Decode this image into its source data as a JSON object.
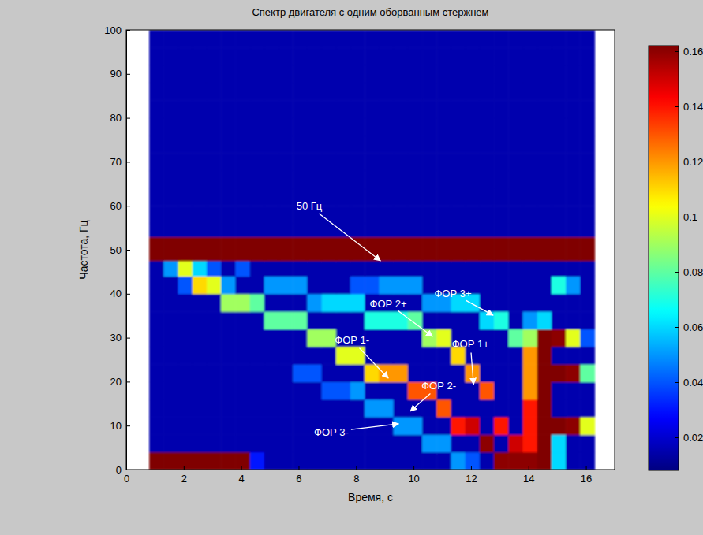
{
  "chart_data": {
    "type": "heatmap",
    "title": "Спектр двигателя с одним оборванным стержнем",
    "x_label": "Время, с",
    "y_label": "Частота, Гц",
    "xlim": [
      0,
      17
    ],
    "ylim": [
      0,
      100
    ],
    "xticks": [
      0,
      2,
      4,
      6,
      8,
      10,
      12,
      14,
      16
    ],
    "yticks": [
      0,
      10,
      20,
      30,
      40,
      50,
      60,
      70,
      80,
      90,
      100
    ],
    "grid": false,
    "x_bins": [
      0.8,
      1.3,
      1.8,
      2.3,
      2.8,
      3.3,
      3.8,
      4.3,
      4.8,
      5.3,
      5.8,
      6.3,
      6.8,
      7.3,
      7.8,
      8.3,
      8.8,
      9.3,
      9.8,
      10.3,
      10.8,
      11.3,
      11.8,
      12.3,
      12.8,
      13.3,
      13.8,
      14.3,
      14.8,
      15.3,
      15.8,
      16.3
    ],
    "y_bins": [
      0,
      4,
      8,
      12,
      16,
      20,
      24,
      28,
      32,
      36,
      40,
      44,
      47.5,
      53,
      56,
      60,
      64,
      68,
      72,
      76,
      80,
      84,
      88,
      92,
      96,
      100
    ],
    "z": [
      [
        0.2,
        0.2,
        0.2,
        0.2,
        0.2,
        0.2,
        0.2,
        0.03,
        0.015,
        0.015,
        0.015,
        0.015,
        0.015,
        0.015,
        0.015,
        0.015,
        0.015,
        0.015,
        0.015,
        0.015,
        0.015,
        0.05,
        0.04,
        0.015,
        0.16,
        0.16,
        0.16,
        0.18,
        0.06,
        0.015,
        0.015
      ],
      [
        0.015,
        0.015,
        0.015,
        0.015,
        0.015,
        0.015,
        0.015,
        0.015,
        0.015,
        0.015,
        0.015,
        0.015,
        0.015,
        0.015,
        0.015,
        0.015,
        0.015,
        0.015,
        0.015,
        0.05,
        0.05,
        0.015,
        0.015,
        0.16,
        0.015,
        0.15,
        0.14,
        0.18,
        0.06,
        0.015,
        0.015
      ],
      [
        0.015,
        0.015,
        0.015,
        0.015,
        0.015,
        0.015,
        0.015,
        0.015,
        0.015,
        0.015,
        0.015,
        0.015,
        0.015,
        0.015,
        0.015,
        0.015,
        0.015,
        0.05,
        0.05,
        0.015,
        0.015,
        0.14,
        0.15,
        0.015,
        0.14,
        0.015,
        0.14,
        0.18,
        0.18,
        0.16,
        0.1
      ],
      [
        0.015,
        0.015,
        0.015,
        0.015,
        0.015,
        0.015,
        0.015,
        0.015,
        0.015,
        0.015,
        0.015,
        0.015,
        0.015,
        0.015,
        0.015,
        0.05,
        0.05,
        0.015,
        0.015,
        0.015,
        0.13,
        0.015,
        0.015,
        0.015,
        0.015,
        0.015,
        0.14,
        0.18,
        0.015,
        0.015,
        0.015
      ],
      [
        0.015,
        0.015,
        0.015,
        0.015,
        0.015,
        0.015,
        0.015,
        0.015,
        0.015,
        0.015,
        0.015,
        0.015,
        0.04,
        0.04,
        0.05,
        0.015,
        0.015,
        0.015,
        0.13,
        0.13,
        0.015,
        0.015,
        0.015,
        0.13,
        0.015,
        0.015,
        0.12,
        0.18,
        0.015,
        0.015,
        0.015
      ],
      [
        0.015,
        0.015,
        0.015,
        0.015,
        0.015,
        0.015,
        0.015,
        0.015,
        0.015,
        0.015,
        0.04,
        0.04,
        0.015,
        0.015,
        0.015,
        0.11,
        0.12,
        0.12,
        0.015,
        0.015,
        0.015,
        0.015,
        0.12,
        0.015,
        0.015,
        0.015,
        0.12,
        0.18,
        0.18,
        0.16,
        0.08
      ],
      [
        0.015,
        0.015,
        0.015,
        0.015,
        0.015,
        0.015,
        0.015,
        0.015,
        0.015,
        0.015,
        0.015,
        0.015,
        0.015,
        0.1,
        0.1,
        0.015,
        0.015,
        0.015,
        0.015,
        0.015,
        0.015,
        0.11,
        0.015,
        0.015,
        0.015,
        0.015,
        0.12,
        0.18,
        0.015,
        0.015,
        0.015
      ],
      [
        0.015,
        0.015,
        0.015,
        0.015,
        0.015,
        0.015,
        0.015,
        0.015,
        0.015,
        0.015,
        0.015,
        0.09,
        0.09,
        0.015,
        0.015,
        0.015,
        0.015,
        0.015,
        0.015,
        0.09,
        0.1,
        0.015,
        0.015,
        0.015,
        0.015,
        0.08,
        0.09,
        0.18,
        0.16,
        0.1,
        0.04
      ],
      [
        0.015,
        0.015,
        0.015,
        0.015,
        0.015,
        0.015,
        0.015,
        0.015,
        0.08,
        0.08,
        0.08,
        0.015,
        0.015,
        0.015,
        0.015,
        0.07,
        0.07,
        0.07,
        0.08,
        0.015,
        0.015,
        0.015,
        0.015,
        0.06,
        0.07,
        0.015,
        0.05,
        0.06,
        0.015,
        0.015,
        0.015
      ],
      [
        0.015,
        0.015,
        0.015,
        0.015,
        0.015,
        0.09,
        0.09,
        0.08,
        0.015,
        0.015,
        0.015,
        0.05,
        0.06,
        0.06,
        0.06,
        0.015,
        0.015,
        0.015,
        0.015,
        0.05,
        0.05,
        0.06,
        0.06,
        0.015,
        0.015,
        0.015,
        0.015,
        0.015,
        0.015,
        0.015,
        0.015
      ],
      [
        0.015,
        0.015,
        0.04,
        0.11,
        0.1,
        0.05,
        0.015,
        0.015,
        0.05,
        0.05,
        0.05,
        0.015,
        0.015,
        0.015,
        0.04,
        0.04,
        0.05,
        0.05,
        0.05,
        0.015,
        0.015,
        0.015,
        0.015,
        0.015,
        0.015,
        0.015,
        0.015,
        0.015,
        0.07,
        0.05,
        0.015
      ],
      [
        0.015,
        0.05,
        0.1,
        0.06,
        0.04,
        0.015,
        0.04,
        0.015,
        0.015,
        0.015,
        0.015,
        0.015,
        0.015,
        0.015,
        0.015,
        0.015,
        0.015,
        0.015,
        0.015,
        0.015,
        0.015,
        0.015,
        0.015,
        0.015,
        0.015,
        0.015,
        0.015,
        0.015,
        0.015,
        0.015,
        0.015
      ],
      [
        0.2,
        0.2,
        0.2,
        0.2,
        0.2,
        0.2,
        0.2,
        0.2,
        0.2,
        0.2,
        0.2,
        0.2,
        0.2,
        0.2,
        0.2,
        0.2,
        0.2,
        0.2,
        0.2,
        0.2,
        0.2,
        0.2,
        0.2,
        0.2,
        0.2,
        0.2,
        0.2,
        0.2,
        0.2,
        0.2,
        0.2
      ],
      [
        0.015,
        0.015,
        0.015,
        0.015,
        0.015,
        0.015,
        0.015,
        0.015,
        0.015,
        0.015,
        0.015,
        0.015,
        0.015,
        0.015,
        0.015,
        0.015,
        0.015,
        0.015,
        0.015,
        0.015,
        0.015,
        0.015,
        0.015,
        0.015,
        0.015,
        0.015,
        0.015,
        0.015,
        0.015,
        0.015,
        0.015
      ],
      [
        0.015,
        0.015,
        0.015,
        0.015,
        0.015,
        0.015,
        0.015,
        0.015,
        0.015,
        0.015,
        0.015,
        0.015,
        0.015,
        0.015,
        0.015,
        0.015,
        0.015,
        0.015,
        0.015,
        0.015,
        0.015,
        0.015,
        0.015,
        0.015,
        0.015,
        0.015,
        0.015,
        0.015,
        0.015,
        0.015,
        0.015
      ],
      [
        0.015,
        0.015,
        0.015,
        0.015,
        0.015,
        0.015,
        0.015,
        0.015,
        0.015,
        0.015,
        0.015,
        0.015,
        0.015,
        0.015,
        0.015,
        0.015,
        0.015,
        0.015,
        0.015,
        0.015,
        0.015,
        0.015,
        0.015,
        0.015,
        0.015,
        0.015,
        0.015,
        0.015,
        0.015,
        0.015,
        0.015
      ],
      [
        0.015,
        0.015,
        0.015,
        0.015,
        0.015,
        0.015,
        0.015,
        0.015,
        0.015,
        0.015,
        0.015,
        0.015,
        0.015,
        0.015,
        0.015,
        0.015,
        0.015,
        0.015,
        0.015,
        0.015,
        0.015,
        0.015,
        0.015,
        0.015,
        0.015,
        0.015,
        0.015,
        0.015,
        0.015,
        0.015,
        0.015
      ],
      [
        0.015,
        0.015,
        0.015,
        0.015,
        0.015,
        0.015,
        0.015,
        0.015,
        0.015,
        0.015,
        0.015,
        0.015,
        0.015,
        0.015,
        0.015,
        0.015,
        0.015,
        0.015,
        0.015,
        0.015,
        0.015,
        0.015,
        0.015,
        0.015,
        0.015,
        0.015,
        0.015,
        0.015,
        0.015,
        0.015,
        0.015
      ],
      [
        0.015,
        0.015,
        0.015,
        0.015,
        0.015,
        0.015,
        0.015,
        0.015,
        0.015,
        0.015,
        0.015,
        0.015,
        0.015,
        0.015,
        0.015,
        0.015,
        0.015,
        0.015,
        0.015,
        0.015,
        0.015,
        0.015,
        0.015,
        0.015,
        0.015,
        0.015,
        0.015,
        0.015,
        0.015,
        0.015,
        0.015
      ],
      [
        0.015,
        0.015,
        0.015,
        0.015,
        0.015,
        0.015,
        0.015,
        0.015,
        0.015,
        0.015,
        0.015,
        0.015,
        0.015,
        0.015,
        0.015,
        0.015,
        0.015,
        0.015,
        0.015,
        0.015,
        0.015,
        0.015,
        0.015,
        0.015,
        0.015,
        0.015,
        0.015,
        0.015,
        0.015,
        0.015,
        0.015
      ],
      [
        0.015,
        0.015,
        0.015,
        0.015,
        0.015,
        0.015,
        0.015,
        0.015,
        0.015,
        0.015,
        0.015,
        0.015,
        0.015,
        0.015,
        0.015,
        0.015,
        0.015,
        0.015,
        0.015,
        0.015,
        0.015,
        0.015,
        0.015,
        0.015,
        0.015,
        0.015,
        0.015,
        0.015,
        0.015,
        0.015,
        0.015
      ],
      [
        0.015,
        0.015,
        0.015,
        0.015,
        0.015,
        0.015,
        0.015,
        0.015,
        0.015,
        0.015,
        0.015,
        0.015,
        0.015,
        0.015,
        0.015,
        0.015,
        0.015,
        0.015,
        0.015,
        0.015,
        0.015,
        0.015,
        0.015,
        0.015,
        0.015,
        0.015,
        0.015,
        0.015,
        0.015,
        0.015,
        0.015
      ],
      [
        0.015,
        0.015,
        0.015,
        0.015,
        0.015,
        0.015,
        0.015,
        0.015,
        0.015,
        0.015,
        0.015,
        0.015,
        0.015,
        0.015,
        0.015,
        0.015,
        0.015,
        0.015,
        0.015,
        0.015,
        0.015,
        0.015,
        0.015,
        0.015,
        0.015,
        0.015,
        0.015,
        0.015,
        0.015,
        0.015,
        0.015
      ],
      [
        0.015,
        0.015,
        0.015,
        0.015,
        0.015,
        0.015,
        0.015,
        0.015,
        0.015,
        0.015,
        0.015,
        0.015,
        0.015,
        0.015,
        0.015,
        0.015,
        0.015,
        0.015,
        0.015,
        0.015,
        0.015,
        0.015,
        0.015,
        0.015,
        0.015,
        0.015,
        0.015,
        0.015,
        0.015,
        0.015,
        0.015
      ],
      [
        0.015,
        0.015,
        0.015,
        0.015,
        0.015,
        0.015,
        0.015,
        0.015,
        0.015,
        0.015,
        0.015,
        0.015,
        0.015,
        0.015,
        0.015,
        0.015,
        0.015,
        0.015,
        0.015,
        0.015,
        0.015,
        0.015,
        0.015,
        0.015,
        0.015,
        0.015,
        0.015,
        0.015,
        0.015,
        0.015,
        0.015
      ]
    ],
    "colorbar": {
      "range": [
        0.008,
        0.162
      ],
      "ticks": [
        0.02,
        0.04,
        0.06,
        0.08,
        0.1,
        0.12,
        0.14,
        0.16
      ]
    },
    "annotations": [
      {
        "text": "50 Гц",
        "x": 6.37,
        "y": 59.9,
        "xy": [
          8.85,
          47.5
        ]
      },
      {
        "text": "ФОР 2+",
        "x": 9.12,
        "y": 37.8,
        "xy": [
          10.66,
          30.3
        ]
      },
      {
        "text": "ФОР 3+",
        "x": 11.37,
        "y": 40.1,
        "xy": [
          12.77,
          35.1
        ]
      },
      {
        "text": "ФОР 1-",
        "x": 7.86,
        "y": 29.4,
        "xy": [
          9.12,
          20.8
        ]
      },
      {
        "text": "ФОР 1+",
        "x": 11.98,
        "y": 28.5,
        "xy": [
          12.09,
          19.4
        ]
      },
      {
        "text": "ФОР 2-",
        "x": 10.88,
        "y": 19.0,
        "xy": [
          9.89,
          13.3
        ]
      },
      {
        "text": "ФОР 3-",
        "x": 7.14,
        "y": 8.6,
        "xy": [
          9.48,
          10.4
        ]
      }
    ]
  }
}
